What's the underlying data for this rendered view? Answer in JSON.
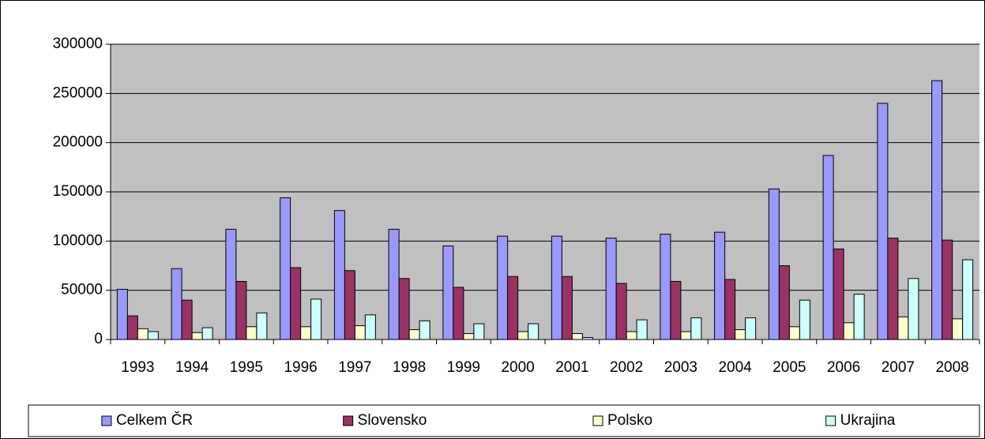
{
  "chart_data": {
    "type": "bar",
    "categories": [
      "1993",
      "1994",
      "1995",
      "1996",
      "1997",
      "1998",
      "1999",
      "2000",
      "2001",
      "2002",
      "2003",
      "2004",
      "2005",
      "2006",
      "2007",
      "2008"
    ],
    "series": [
      {
        "name": "Celkem ČR",
        "color": "#9999ff",
        "values": [
          51000,
          72000,
          112000,
          144000,
          131000,
          112000,
          95000,
          105000,
          105000,
          103000,
          107000,
          109000,
          153000,
          187000,
          240000,
          263000
        ]
      },
      {
        "name": "Slovensko",
        "color": "#993366",
        "values": [
          24000,
          40000,
          59000,
          73000,
          70000,
          62000,
          53000,
          64000,
          64000,
          57000,
          59000,
          61000,
          75000,
          92000,
          103000,
          101000
        ]
      },
      {
        "name": "Polsko",
        "color": "#ffffcc",
        "values": [
          11000,
          7000,
          13000,
          13000,
          14000,
          10000,
          6000,
          8000,
          6000,
          8000,
          8000,
          10000,
          13000,
          17000,
          23000,
          21000
        ]
      },
      {
        "name": "Ukrajina",
        "color": "#ccffff",
        "values": [
          8000,
          12000,
          27000,
          41000,
          25000,
          19000,
          16000,
          16000,
          2000,
          20000,
          22000,
          22000,
          40000,
          46000,
          62000,
          81000
        ]
      }
    ],
    "ylim": [
      0,
      300000
    ],
    "yticks": [
      0,
      50000,
      100000,
      150000,
      200000,
      250000,
      300000
    ],
    "grid": true,
    "legend": "bottom",
    "plot_background": "#c0c0c0"
  }
}
